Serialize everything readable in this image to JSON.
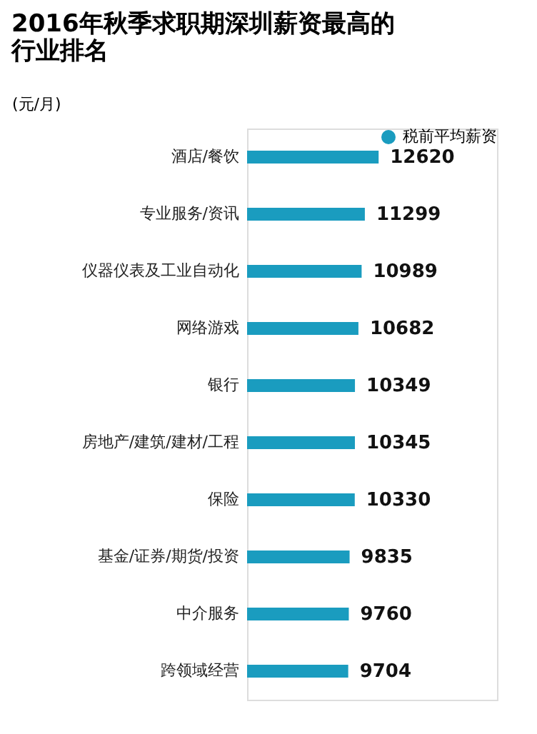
{
  "chart_data": {
    "type": "bar",
    "orientation": "horizontal",
    "title": [
      "2016年秋季求职期深圳薪资最高的",
      "行业排名"
    ],
    "ylabel": "(元/月)",
    "categories": [
      "酒店/餐饮",
      "专业服务/资讯",
      "仪器仪表及工业自动化",
      "网络游戏",
      "银行",
      "房地产/建筑/建材/工程",
      "保险",
      "基金/证券/期货/投资",
      "中介服务",
      "跨领域经营"
    ],
    "series": [
      {
        "name": "税前平均薪资",
        "color": "#1a9cbf",
        "values": [
          12620,
          11299,
          10989,
          10682,
          10349,
          10345,
          10330,
          9835,
          9760,
          9704
        ]
      }
    ],
    "data_labels": true,
    "legend": "top right",
    "grid": false
  }
}
